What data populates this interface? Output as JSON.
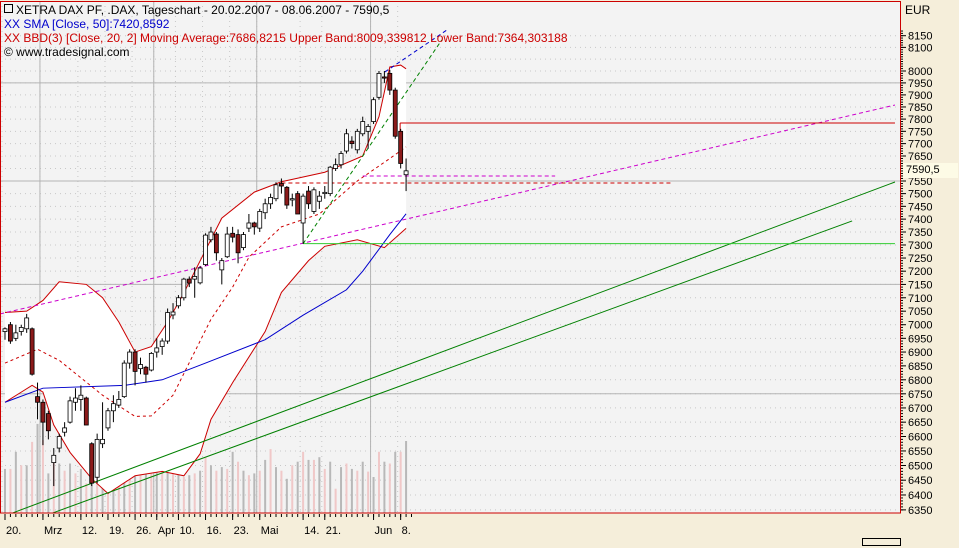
{
  "header": {
    "title": "XETRA DAX PF, .DAX, Tageschart - 20.02.2007 - 08.06.2007 - 7590,5",
    "sma_legend": "XX SMA [Close, 50]:7420,8592",
    "bbd_legend": "XX BBD(3) [Close, 20, 2] Moving Average:7686,8215 Upper Band:8009,339812 Lower Band:7364,303188",
    "copyright": "© www.tradesignal.com"
  },
  "axis": {
    "currency": "EUR",
    "current_price_label": "7590,5",
    "bottom_scroll": "scrollbar"
  },
  "colors": {
    "sma": "#0000CC",
    "bollinger": "#CC0000",
    "bull_candle": "#FFFFFF",
    "bear_candle": "#8B1A1A",
    "trend_green": "#008000",
    "horizontal_green": "#33CC33",
    "magenta": "#CC00CC",
    "volume_a": "#B8B8B8",
    "volume_b": "#F0C8C8"
  },
  "chart_data": {
    "type": "candlestick",
    "title": "XETRA DAX PF, .DAX, Tageschart - 20.02.2007 - 08.06.2007 - 7590,5",
    "y_scale": "log",
    "ylim": [
      6340,
      8200
    ],
    "ylabel": "EUR",
    "y_ticks": [
      8150,
      8100,
      8000,
      7950,
      7900,
      7850,
      7800,
      7750,
      7700,
      7650,
      7550,
      7500,
      7450,
      7400,
      7350,
      7300,
      7250,
      7200,
      7150,
      7100,
      7050,
      7000,
      6950,
      6900,
      6850,
      6800,
      6750,
      6700,
      6650,
      6600,
      6550,
      6500,
      6450,
      6400,
      6350
    ],
    "y_major_grid": [
      7950,
      7550,
      7150,
      6750
    ],
    "x_ticks": [
      {
        "label": "20.",
        "bar": 0
      },
      {
        "label": "Mrz",
        "bar": 7
      },
      {
        "label": "12.",
        "bar": 14
      },
      {
        "label": "19.",
        "bar": 19
      },
      {
        "label": "26.",
        "bar": 24
      },
      {
        "label": "Apr",
        "bar": 28
      },
      {
        "label": "10.",
        "bar": 32
      },
      {
        "label": "16.",
        "bar": 37
      },
      {
        "label": "23.",
        "bar": 42
      },
      {
        "label": "Mai",
        "bar": 47
      },
      {
        "label": "14.",
        "bar": 55
      },
      {
        "label": "21.",
        "bar": 59
      },
      {
        "label": "Jun",
        "bar": 68
      },
      {
        "label": "8.",
        "bar": 73
      }
    ],
    "x_major_grid_bars": [
      7,
      28,
      47,
      68
    ],
    "candles_ohlc": [
      [
        6975,
        6990,
        6945,
        6985
      ],
      [
        7000,
        7010,
        6930,
        6940
      ],
      [
        6950,
        7000,
        6940,
        6970
      ],
      [
        6975,
        7000,
        6960,
        6990
      ],
      [
        6985,
        7040,
        6970,
        7025
      ],
      [
        6985,
        6990,
        6815,
        6820
      ],
      [
        6740,
        6790,
        6660,
        6720
      ],
      [
        6720,
        6730,
        6570,
        6650
      ],
      [
        6680,
        6690,
        6590,
        6620
      ],
      [
        6510,
        6560,
        6430,
        6535
      ],
      [
        6560,
        6610,
        6545,
        6600
      ],
      [
        6615,
        6650,
        6600,
        6630
      ],
      [
        6650,
        6740,
        6645,
        6725
      ],
      [
        6720,
        6770,
        6690,
        6735
      ],
      [
        6730,
        6780,
        6690,
        6745
      ],
      [
        6735,
        6740,
        6640,
        6640
      ],
      [
        6575,
        6580,
        6430,
        6440
      ],
      [
        6460,
        6610,
        6440,
        6590
      ],
      [
        6575,
        6720,
        6560,
        6590
      ],
      [
        6630,
        6700,
        6620,
        6690
      ],
      [
        6690,
        6745,
        6650,
        6715
      ],
      [
        6710,
        6760,
        6700,
        6730
      ],
      [
        6740,
        6870,
        6735,
        6860
      ],
      [
        6860,
        6910,
        6840,
        6900
      ],
      [
        6900,
        6910,
        6780,
        6830
      ],
      [
        6840,
        6880,
        6820,
        6855
      ],
      [
        6845,
        6850,
        6790,
        6820
      ],
      [
        6835,
        6900,
        6830,
        6895
      ],
      [
        6900,
        6950,
        6880,
        6915
      ],
      [
        6920,
        6950,
        6890,
        6940
      ],
      [
        6940,
        7060,
        6930,
        7045
      ],
      [
        7036,
        7080,
        7020,
        7047
      ],
      [
        7070,
        7110,
        7060,
        7100
      ],
      [
        7100,
        7175,
        7090,
        7170
      ],
      [
        7170,
        7180,
        7140,
        7155
      ],
      [
        7170,
        7215,
        7100,
        7180
      ],
      [
        7156,
        7220,
        7150,
        7212
      ],
      [
        7225,
        7345,
        7220,
        7338
      ],
      [
        7320,
        7370,
        7310,
        7350
      ],
      [
        7342,
        7350,
        7240,
        7270
      ],
      [
        7205,
        7250,
        7150,
        7240
      ],
      [
        7255,
        7370,
        7250,
        7342
      ],
      [
        7345,
        7370,
        7310,
        7330
      ],
      [
        7340,
        7360,
        7230,
        7270
      ],
      [
        7290,
        7350,
        7280,
        7340
      ],
      [
        7365,
        7420,
        7350,
        7385
      ],
      [
        7385,
        7390,
        7340,
        7370
      ],
      [
        7365,
        7440,
        7350,
        7430
      ],
      [
        7425,
        7480,
        7400,
        7460
      ],
      [
        7460,
        7500,
        7440,
        7485
      ],
      [
        7480,
        7545,
        7470,
        7535
      ],
      [
        7540,
        7560,
        7500,
        7530
      ],
      [
        7525,
        7530,
        7440,
        7455
      ],
      [
        7475,
        7500,
        7450,
        7480
      ],
      [
        7500,
        7510,
        7420,
        7420
      ],
      [
        7385,
        7500,
        7305,
        7490
      ],
      [
        7510,
        7530,
        7440,
        7460
      ],
      [
        7430,
        7525,
        7420,
        7515
      ],
      [
        7470,
        7510,
        7440,
        7490
      ],
      [
        7500,
        7530,
        7480,
        7505
      ],
      [
        7500,
        7610,
        7490,
        7605
      ],
      [
        7600,
        7640,
        7590,
        7615
      ],
      [
        7615,
        7670,
        7600,
        7660
      ],
      [
        7670,
        7760,
        7660,
        7740
      ],
      [
        7710,
        7730,
        7680,
        7700
      ],
      [
        7675,
        7760,
        7660,
        7750
      ],
      [
        7740,
        7810,
        7730,
        7790
      ],
      [
        7750,
        7780,
        7680,
        7770
      ],
      [
        7790,
        7890,
        7780,
        7880
      ],
      [
        7890,
        8000,
        7880,
        7990
      ],
      [
        7975,
        8000,
        7950,
        7970
      ],
      [
        7990,
        8005,
        7900,
        7920
      ],
      [
        7920,
        7930,
        7720,
        7730
      ],
      [
        7750,
        7760,
        7600,
        7620
      ],
      [
        7575,
        7640,
        7510,
        7590.5
      ]
    ],
    "volume_relative": [
      49,
      49,
      68,
      53,
      53,
      79,
      99,
      81,
      44,
      59,
      55,
      47,
      55,
      44,
      49,
      33,
      77,
      68,
      66,
      53,
      49,
      49,
      66,
      68,
      55,
      55,
      47,
      49,
      60,
      47,
      60,
      53,
      53,
      40,
      42,
      44,
      47,
      62,
      53,
      47,
      51,
      49,
      68,
      57,
      47,
      42,
      44,
      47,
      59,
      71,
      51,
      47,
      38,
      53,
      57,
      68,
      59,
      59,
      62,
      49,
      57,
      27,
      51,
      55,
      49,
      47,
      57,
      46,
      40,
      68,
      57,
      55,
      68,
      68,
      80
    ],
    "sma50": [
      [
        0,
        6720
      ],
      [
        7,
        6770
      ],
      [
        22,
        6780
      ],
      [
        29,
        6800
      ],
      [
        37,
        6860
      ],
      [
        48,
        6945
      ],
      [
        55,
        7035
      ],
      [
        63,
        7130
      ],
      [
        66,
        7200
      ],
      [
        71,
        7340
      ],
      [
        74,
        7420.86
      ]
    ],
    "bb_upper": [
      [
        0,
        7045
      ],
      [
        4,
        7050
      ],
      [
        7,
        7090
      ],
      [
        10,
        7160
      ],
      [
        15,
        7150
      ],
      [
        18,
        7100
      ],
      [
        21,
        7010
      ],
      [
        24,
        6900
      ],
      [
        27,
        6920
      ],
      [
        30,
        7010
      ],
      [
        33,
        7118
      ],
      [
        40,
        7404
      ],
      [
        46,
        7506
      ],
      [
        51,
        7547
      ],
      [
        59,
        7585
      ],
      [
        66,
        7650
      ],
      [
        69,
        7810
      ],
      [
        71,
        8017
      ],
      [
        73,
        8025
      ],
      [
        74,
        8009.34
      ]
    ],
    "bb_middle": [
      [
        0,
        6860
      ],
      [
        6,
        6910
      ],
      [
        10,
        6870
      ],
      [
        18,
        6745
      ],
      [
        24,
        6670
      ],
      [
        27,
        6672
      ],
      [
        31,
        6745
      ],
      [
        38,
        7020
      ],
      [
        42,
        7140
      ],
      [
        45,
        7253
      ],
      [
        51,
        7370
      ],
      [
        58,
        7420
      ],
      [
        65,
        7550
      ],
      [
        71,
        7640
      ],
      [
        74,
        7686.82
      ]
    ],
    "bb_lower": [
      [
        0,
        6720
      ],
      [
        3,
        6756
      ],
      [
        5,
        6780
      ],
      [
        7,
        6756
      ],
      [
        9,
        6640
      ],
      [
        12,
        6545
      ],
      [
        16,
        6455
      ],
      [
        19,
        6405
      ],
      [
        24,
        6465
      ],
      [
        29,
        6480
      ],
      [
        33,
        6465
      ],
      [
        36,
        6540
      ],
      [
        38,
        6660
      ],
      [
        42,
        6790
      ],
      [
        48,
        6975
      ],
      [
        51,
        7120
      ],
      [
        56,
        7240
      ],
      [
        59,
        7295
      ],
      [
        65,
        7320
      ],
      [
        70,
        7290
      ],
      [
        74,
        7364.3
      ]
    ],
    "drawings": [
      {
        "kind": "trend",
        "style": "dashed",
        "color": "#CC00CC",
        "from": [
          -0.9,
          7040
        ],
        "to": [
          164.2,
          7858
        ]
      },
      {
        "kind": "trend",
        "style": "solid",
        "color": "#008000",
        "from": [
          1.3,
          6339
        ],
        "to": [
          164.2,
          7546
        ]
      },
      {
        "kind": "trend",
        "style": "solid",
        "color": "#008000",
        "from": [
          8.7,
          6339
        ],
        "to": [
          156.3,
          7393
        ]
      },
      {
        "kind": "trend",
        "style": "solid",
        "color": "#33CC33",
        "from": [
          55,
          7305
        ],
        "to": [
          164.2,
          7305
        ]
      },
      {
        "kind": "trend",
        "style": "solid",
        "color": "#CC0000",
        "from": [
          72.9,
          7670
        ],
        "to": [
          72.9,
          7784
        ]
      },
      {
        "kind": "trend",
        "style": "solid",
        "color": "#CC0000",
        "from": [
          72.9,
          7784
        ],
        "to": [
          164.2,
          7784
        ]
      },
      {
        "kind": "trend",
        "style": "dashed",
        "color": "#008000",
        "from": [
          55,
          7305
        ],
        "to": [
          80.6,
          8132
        ]
      },
      {
        "kind": "trend",
        "style": "dashed",
        "color": "#0000CC",
        "from": [
          70.1,
          7996
        ],
        "to": [
          81.5,
          8174
        ]
      },
      {
        "kind": "trend",
        "style": "dashed",
        "color": "#CC00CC",
        "from": [
          66,
          7570
        ],
        "to": [
          101.5,
          7570
        ]
      },
      {
        "kind": "trend",
        "style": "dashed",
        "color": "#CC0000",
        "from": [
          51,
          7542
        ],
        "to": [
          123,
          7542
        ]
      }
    ]
  }
}
